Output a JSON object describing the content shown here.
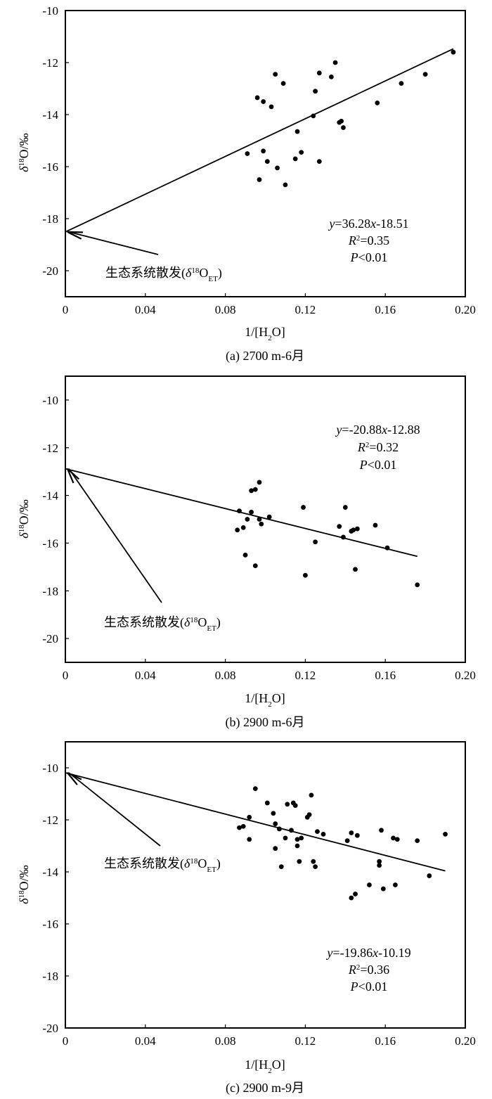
{
  "chart_data": [
    {
      "type": "scatter",
      "caption": "(a) 2700 m-6月",
      "xlabel": "1/[H₂O]",
      "ylabel": "δ¹⁸O/‰",
      "xlim": [
        0,
        0.2
      ],
      "ylim": [
        -21,
        -10
      ],
      "xticks": [
        0,
        0.04,
        0.08,
        0.12,
        0.16,
        0.2
      ],
      "xtick_labels": [
        "0",
        "0.04",
        "0.08",
        "0.12",
        "0.16",
        "0.20"
      ],
      "yticks": [
        -10,
        -12,
        -14,
        -16,
        -18,
        -20
      ],
      "ytick_labels": [
        "-10",
        "-12",
        "-14",
        "-16",
        "-18",
        "-20"
      ],
      "equation": {
        "line1": "y=36.28x-18.51",
        "line2": "R²=0.35",
        "line3": "P<0.01"
      },
      "arrow_label": "生态系统散发(δ¹⁸O_ET)",
      "fit": {
        "slope": 36.28,
        "intercept": -18.51,
        "x_range": [
          0,
          0.194
        ]
      },
      "points": [
        [
          0.091,
          -15.5
        ],
        [
          0.096,
          -13.35
        ],
        [
          0.097,
          -16.5
        ],
        [
          0.099,
          -15.4
        ],
        [
          0.099,
          -13.5
        ],
        [
          0.101,
          -15.8
        ],
        [
          0.103,
          -13.7
        ],
        [
          0.105,
          -12.45
        ],
        [
          0.106,
          -16.05
        ],
        [
          0.109,
          -12.8
        ],
        [
          0.11,
          -16.7
        ],
        [
          0.115,
          -15.7
        ],
        [
          0.116,
          -14.65
        ],
        [
          0.118,
          -15.45
        ],
        [
          0.124,
          -14.05
        ],
        [
          0.125,
          -13.1
        ],
        [
          0.127,
          -12.4
        ],
        [
          0.127,
          -15.8
        ],
        [
          0.133,
          -12.55
        ],
        [
          0.135,
          -12.0
        ],
        [
          0.137,
          -14.3
        ],
        [
          0.138,
          -14.25
        ],
        [
          0.139,
          -14.5
        ],
        [
          0.156,
          -13.55
        ],
        [
          0.168,
          -12.8
        ],
        [
          0.18,
          -12.45
        ],
        [
          0.194,
          -11.6
        ]
      ]
    },
    {
      "type": "scatter",
      "caption": "(b) 2900 m-6月",
      "xlabel": "1/[H₂O]",
      "ylabel": "δ¹⁸O/‰",
      "xlim": [
        0,
        0.2
      ],
      "ylim": [
        -21,
        -9
      ],
      "xticks": [
        0,
        0.04,
        0.08,
        0.12,
        0.16,
        0.2
      ],
      "xtick_labels": [
        "0",
        "0.04",
        "0.08",
        "0.12",
        "0.16",
        "0.20"
      ],
      "yticks": [
        -10,
        -12,
        -14,
        -16,
        -18,
        -20
      ],
      "ytick_labels": [
        "-10",
        "-12",
        "-14",
        "-16",
        "-18",
        "-20"
      ],
      "equation": {
        "line1": "y=-20.88x-12.88",
        "line2": "R²=0.32",
        "line3": "P<0.01"
      },
      "arrow_label": "生态系统散发(δ¹⁸O_ET)",
      "fit": {
        "slope": -20.88,
        "intercept": -12.88,
        "x_range": [
          0,
          0.176
        ]
      },
      "points": [
        [
          0.086,
          -15.45
        ],
        [
          0.087,
          -14.65
        ],
        [
          0.089,
          -15.35
        ],
        [
          0.09,
          -16.5
        ],
        [
          0.091,
          -15.0
        ],
        [
          0.093,
          -14.7
        ],
        [
          0.093,
          -13.8
        ],
        [
          0.095,
          -13.75
        ],
        [
          0.095,
          -16.95
        ],
        [
          0.097,
          -13.45
        ],
        [
          0.097,
          -15.0
        ],
        [
          0.098,
          -15.2
        ],
        [
          0.102,
          -14.9
        ],
        [
          0.119,
          -14.5
        ],
        [
          0.12,
          -17.35
        ],
        [
          0.125,
          -15.95
        ],
        [
          0.137,
          -15.3
        ],
        [
          0.139,
          -15.75
        ],
        [
          0.14,
          -14.5
        ],
        [
          0.143,
          -15.5
        ],
        [
          0.144,
          -15.45
        ],
        [
          0.145,
          -17.1
        ],
        [
          0.146,
          -15.4
        ],
        [
          0.155,
          -15.25
        ],
        [
          0.161,
          -16.2
        ],
        [
          0.176,
          -17.75
        ]
      ]
    },
    {
      "type": "scatter",
      "caption": "(c) 2900 m-9月",
      "xlabel": "1/[H₂O]",
      "ylabel": "δ¹⁸O/‰",
      "xlim": [
        0,
        0.2
      ],
      "ylim": [
        -20,
        -9
      ],
      "xticks": [
        0,
        0.04,
        0.08,
        0.12,
        0.16,
        0.2
      ],
      "xtick_labels": [
        "0",
        "0.04",
        "0.08",
        "0.12",
        "0.16",
        "0.20"
      ],
      "yticks": [
        -10,
        -12,
        -14,
        -16,
        -18,
        -20
      ],
      "ytick_labels": [
        "-10",
        "-12",
        "-14",
        "-16",
        "-18",
        "-20"
      ],
      "equation": {
        "line1": "y=-19.86x-10.19",
        "line2": "R²=0.36",
        "line3": "P<0.01"
      },
      "arrow_label": "生态系统散发(δ¹⁸O_ET)",
      "fit": {
        "slope": -19.86,
        "intercept": -10.19,
        "x_range": [
          0,
          0.19
        ]
      },
      "points": [
        [
          0.087,
          -12.3
        ],
        [
          0.089,
          -12.25
        ],
        [
          0.092,
          -11.9
        ],
        [
          0.092,
          -12.75
        ],
        [
          0.095,
          -10.8
        ],
        [
          0.101,
          -11.35
        ],
        [
          0.104,
          -11.75
        ],
        [
          0.105,
          -13.1
        ],
        [
          0.105,
          -12.15
        ],
        [
          0.107,
          -12.35
        ],
        [
          0.108,
          -13.8
        ],
        [
          0.11,
          -12.7
        ],
        [
          0.111,
          -11.4
        ],
        [
          0.113,
          -12.4
        ],
        [
          0.114,
          -11.35
        ],
        [
          0.115,
          -11.45
        ],
        [
          0.116,
          -12.75
        ],
        [
          0.116,
          -13.0
        ],
        [
          0.117,
          -13.6
        ],
        [
          0.118,
          -12.7
        ],
        [
          0.121,
          -11.9
        ],
        [
          0.122,
          -11.8
        ],
        [
          0.123,
          -11.05
        ],
        [
          0.124,
          -13.6
        ],
        [
          0.125,
          -13.8
        ],
        [
          0.126,
          -12.45
        ],
        [
          0.129,
          -12.55
        ],
        [
          0.141,
          -12.8
        ],
        [
          0.143,
          -12.5
        ],
        [
          0.143,
          -15.0
        ],
        [
          0.145,
          -14.85
        ],
        [
          0.146,
          -12.6
        ],
        [
          0.152,
          -14.5
        ],
        [
          0.157,
          -13.75
        ],
        [
          0.157,
          -13.6
        ],
        [
          0.158,
          -12.4
        ],
        [
          0.159,
          -14.65
        ],
        [
          0.164,
          -12.7
        ],
        [
          0.165,
          -14.5
        ],
        [
          0.166,
          -12.75
        ],
        [
          0.176,
          -12.8
        ],
        [
          0.182,
          -14.15
        ],
        [
          0.19,
          -12.55
        ]
      ]
    }
  ]
}
